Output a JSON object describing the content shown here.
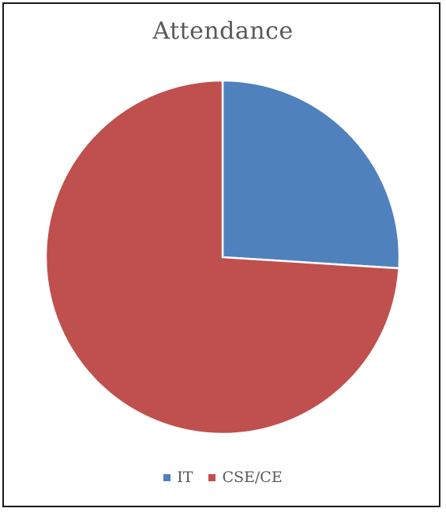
{
  "chart_data": {
    "type": "pie",
    "title": "Attendance",
    "categories": [
      "IT",
      "CSE/CE"
    ],
    "values": [
      26,
      74
    ],
    "colors": [
      "#4f81bd",
      "#c0504d"
    ],
    "legend_position": "bottom"
  }
}
